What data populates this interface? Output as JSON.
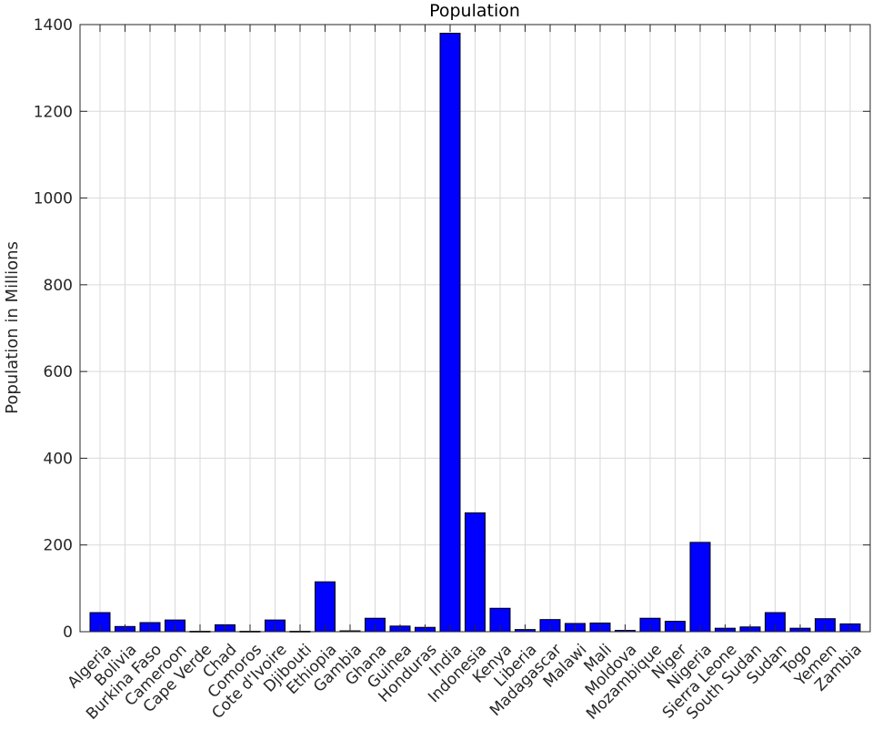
{
  "chart_data": {
    "type": "bar",
    "title": "Population",
    "xlabel": "",
    "ylabel": "Population in Millions",
    "ylim": [
      0,
      1400
    ],
    "yticks": [
      0,
      200,
      400,
      600,
      800,
      1000,
      1200,
      1400
    ],
    "grid": true,
    "categories": [
      "Algeria",
      "Bolivia",
      "Burkina Faso",
      "Cameroon",
      "Cape Verde",
      "Chad",
      "Comoros",
      "Cote d'Ivoire",
      "Djibouti",
      "Ethiopia",
      "Gambia",
      "Ghana",
      "Guinea",
      "Honduras",
      "India",
      "Indonesia",
      "Kenya",
      "Liberia",
      "Madagascar",
      "Malawi",
      "Mali",
      "Moldova",
      "Mozambique",
      "Niger",
      "Nigeria",
      "Sierra Leone",
      "South Sudan",
      "Sudan",
      "Togo",
      "Yemen",
      "Zambia"
    ],
    "values": [
      44,
      12,
      21,
      27,
      1,
      16,
      1,
      27,
      1,
      115,
      2,
      31,
      13,
      10,
      1380,
      274,
      54,
      5,
      28,
      19,
      20,
      3,
      31,
      24,
      206,
      8,
      11,
      44,
      8,
      30,
      18
    ],
    "colors": {
      "bar_fill": "#0000ff",
      "bar_edge": "#000000",
      "grid": "#d9d9d9",
      "axes": "#262626"
    }
  }
}
